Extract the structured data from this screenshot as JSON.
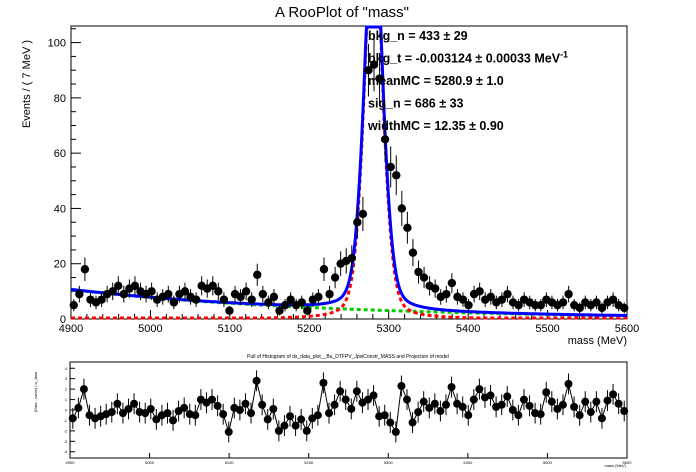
{
  "chart_data": [
    {
      "type": "scatter",
      "title": "A RooPlot of \"mass\"",
      "xlabel": "mass (MeV)",
      "ylabel": "Events / ( 7 MeV )",
      "xlim": [
        4900,
        5600
      ],
      "ylim": [
        0,
        106
      ],
      "xticks": [
        "4900",
        "5000",
        "5100",
        "5200",
        "5300",
        "5400",
        "5500",
        "5600"
      ],
      "yticks": [
        "0",
        "20",
        "40",
        "60",
        "80",
        "100"
      ],
      "params": [
        {
          "label": "bkg_n = ",
          "value": "433 ± 29"
        },
        {
          "label": "bkg_t = ",
          "value": "-0.003124 ± 0.00033 MeV",
          "sup": "-1"
        },
        {
          "label": "meanMC = ",
          "value": "5280.9 ± 1.0"
        },
        {
          "label": "sig_n = ",
          "value": "686 ± 33"
        },
        {
          "label": "widthMC = ",
          "value": "12.35 ± 0.90"
        }
      ],
      "series": [
        {
          "kind": "data",
          "color": "#000000",
          "x": [
            4903.5,
            4910.5,
            4917.5,
            4924.5,
            4931.5,
            4938.5,
            4945.5,
            4952.5,
            4959.5,
            4966.5,
            4973.5,
            4980.5,
            4987.5,
            4994.5,
            5001.5,
            5008.5,
            5015.5,
            5022.5,
            5029.5,
            5036.5,
            5043.5,
            5050.5,
            5057.5,
            5064.5,
            5071.5,
            5078.5,
            5085.5,
            5092.5,
            5099.5,
            5106.5,
            5113.5,
            5120.5,
            5127.5,
            5134.5,
            5141.5,
            5148.5,
            5155.5,
            5162.5,
            5169.5,
            5176.5,
            5183.5,
            5190.5,
            5197.5,
            5204.5,
            5211.5,
            5218.5,
            5225.5,
            5232.5,
            5239.5,
            5246.5,
            5253.5,
            5260.5,
            5267.5,
            5274.5,
            5281.5,
            5288.5,
            5295.5,
            5302.5,
            5309.5,
            5316.5,
            5323.5,
            5330.5,
            5337.5,
            5344.5,
            5351.5,
            5358.5,
            5365.5,
            5372.5,
            5379.5,
            5386.5,
            5393.5,
            5400.5,
            5407.5,
            5414.5,
            5421.5,
            5428.5,
            5435.5,
            5442.5,
            5449.5,
            5456.5,
            5463.5,
            5470.5,
            5477.5,
            5484.5,
            5491.5,
            5498.5,
            5505.5,
            5512.5,
            5519.5,
            5526.5,
            5533.5,
            5540.5,
            5547.5,
            5554.5,
            5561.5,
            5568.5,
            5575.5,
            5582.5,
            5589.5,
            5596.5
          ],
          "y": [
            5,
            9,
            18,
            7,
            6,
            7,
            9,
            10,
            12,
            9,
            11,
            12,
            10,
            9,
            10,
            7,
            8,
            9,
            6,
            9,
            10,
            8,
            7,
            12,
            11,
            12,
            10,
            7,
            3,
            9,
            8,
            10,
            7,
            16,
            9,
            6,
            8,
            3,
            5,
            7,
            5,
            6,
            3,
            7,
            8,
            18,
            9,
            15,
            20,
            21,
            22,
            35,
            38,
            90,
            92,
            87,
            65,
            55,
            52,
            40,
            33,
            24,
            17,
            15,
            12,
            11,
            8,
            9,
            13,
            8,
            7,
            5,
            9,
            10,
            7,
            8,
            6,
            7,
            9,
            6,
            5,
            7,
            6,
            5,
            5,
            7,
            6,
            5,
            6,
            9,
            5,
            4,
            6,
            5,
            6,
            4,
            6,
            7,
            5,
            4
          ]
        },
        {
          "kind": "total-fit",
          "color": "#0000ff"
        },
        {
          "kind": "signal-component",
          "color": "#ff0000"
        },
        {
          "kind": "background-component",
          "color": "#00cc00"
        }
      ]
    },
    {
      "type": "scatter",
      "title": "Pull of Histogram of ds_data_plot__Bu_DTFPV_JpsiConstr_MASS and Projection of model",
      "xlabel": "mass (MeV)",
      "ylabel": "(Data - curve) / σ_data",
      "xlim": [
        4900,
        5600
      ],
      "ylim": [
        -4.6,
        4.6
      ],
      "xticks": [
        "4900",
        "5000",
        "5100",
        "5200",
        "5300",
        "5400",
        "5500",
        "5600"
      ],
      "yticks": [
        "-4",
        "-3",
        "-2",
        "-1",
        "0",
        "1",
        "2",
        "3",
        "4"
      ],
      "color": "#000000",
      "y": [
        -0.8,
        0.2,
        2.0,
        -0.5,
        -0.8,
        -0.6,
        -0.4,
        -0.2,
        0.6,
        -0.3,
        0.1,
        0.6,
        -0.2,
        -0.3,
        0.1,
        -0.9,
        -0.5,
        -0.3,
        -1.0,
        -0.1,
        0.2,
        -0.4,
        -0.5,
        1.0,
        0.7,
        1.0,
        0.4,
        -0.4,
        -2.1,
        0.2,
        0.0,
        0.6,
        -0.3,
        2.8,
        0.5,
        -0.9,
        0.1,
        -2.0,
        -1.5,
        -0.6,
        -1.5,
        -0.9,
        -2.0,
        -0.8,
        -0.5,
        2.6,
        -0.3,
        0.5,
        1.8,
        1.0,
        0.1,
        1.8,
        0.7,
        1.0,
        1.4,
        -0.6,
        -0.5,
        -1.2,
        -2.1,
        2.3,
        1.0,
        -1.2,
        -0.2,
        0.8,
        0.2,
        0.6,
        -0.1,
        0.5,
        2.2,
        0.6,
        0.3,
        -0.5,
        1.0,
        2.0,
        1.2,
        1.4,
        0.3,
        0.5,
        1.3,
        0.0,
        -0.5,
        1.0,
        0.4,
        -0.3,
        -0.4,
        1.7,
        0.8,
        0.1,
        0.5,
        2.5,
        0.3,
        -0.5,
        0.8,
        -0.2,
        0.8,
        -0.8,
        0.9,
        1.5,
        0.6,
        -0.1
      ]
    }
  ]
}
